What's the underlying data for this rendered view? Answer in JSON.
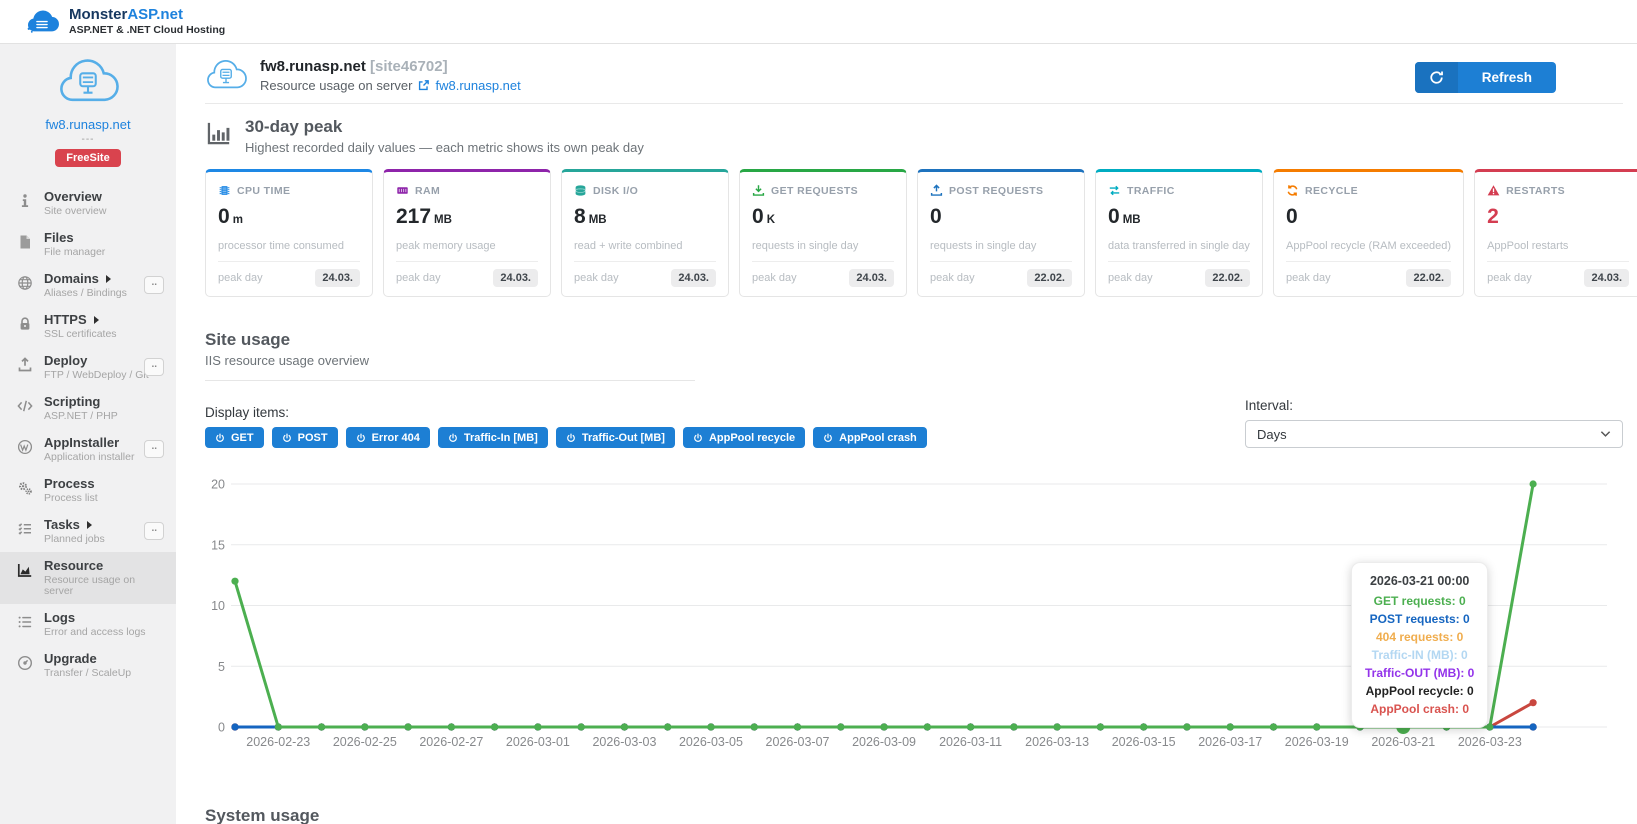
{
  "ui": {
    "more_label": ".."
  },
  "app": {
    "brand_monster": "Monster",
    "brand_asp": "ASP",
    "brand_net": ".net",
    "brand_subtitle": "ASP.NET & .NET Cloud Hosting"
  },
  "sidebar": {
    "site_name": "fw8.runasp.net",
    "site_dash": "---",
    "badge": "FreeSite",
    "items": [
      {
        "label": "Overview",
        "sub": "Site overview",
        "icon": "info-icon",
        "arrow": false,
        "more": false,
        "active": false
      },
      {
        "label": "Files",
        "sub": "File manager",
        "icon": "file-icon",
        "arrow": false,
        "more": false,
        "active": false
      },
      {
        "label": "Domains",
        "sub": "Aliases / Bindings",
        "icon": "globe-icon",
        "arrow": true,
        "more": true,
        "active": false
      },
      {
        "label": "HTTPS",
        "sub": "SSL certificates",
        "icon": "lock-icon",
        "arrow": true,
        "more": false,
        "active": false
      },
      {
        "label": "Deploy",
        "sub": "FTP / WebDeploy / Git",
        "icon": "upload-tray-icon",
        "arrow": false,
        "more": true,
        "active": false
      },
      {
        "label": "Scripting",
        "sub": "ASP.NET / PHP",
        "icon": "code-icon",
        "arrow": false,
        "more": false,
        "active": false
      },
      {
        "label": "AppInstaller",
        "sub": "Application installer",
        "icon": "wordpress-icon",
        "arrow": false,
        "more": true,
        "active": false
      },
      {
        "label": "Process",
        "sub": "Process list",
        "icon": "gears-icon",
        "arrow": false,
        "more": false,
        "active": false
      },
      {
        "label": "Tasks",
        "sub": "Planned jobs",
        "icon": "tasks-icon",
        "arrow": true,
        "more": true,
        "active": false
      },
      {
        "label": "Resource",
        "sub": "Resource usage on server",
        "icon": "chart-area-icon",
        "arrow": false,
        "more": false,
        "active": true
      },
      {
        "label": "Logs",
        "sub": "Error and access logs",
        "icon": "logs-icon",
        "arrow": false,
        "more": false,
        "active": false
      },
      {
        "label": "Upgrade",
        "sub": "Transfer / ScaleUp",
        "icon": "upgrade-icon",
        "arrow": false,
        "more": false,
        "active": false
      }
    ]
  },
  "header": {
    "site_title": "fw8.runasp.net",
    "site_id": "[site46702]",
    "subtitle": "Resource usage on server",
    "site_link": "fw8.runasp.net",
    "refresh_label": "Refresh"
  },
  "peak_section": {
    "title": "30-day peak",
    "subtitle": "Highest recorded daily values — each metric shows its own peak day",
    "peak_day_label": "peak day",
    "cards": [
      {
        "label": "CPU TIME",
        "icon": "cpu-icon",
        "accent": "#1e88e5",
        "value": "0",
        "unit": "m",
        "desc": "processor time consumed",
        "peak": "24.03."
      },
      {
        "label": "RAM",
        "icon": "ram-icon",
        "accent": "#8e24aa",
        "value": "217",
        "unit": "MB",
        "desc": "peak memory usage",
        "peak": "24.03."
      },
      {
        "label": "DISK I/O",
        "icon": "disk-icon",
        "accent": "#26a69a",
        "value": "8",
        "unit": "MB",
        "desc": "read + write combined",
        "peak": "24.03."
      },
      {
        "label": "GET REQUESTS",
        "icon": "download-icon",
        "accent": "#28a745",
        "value": "0",
        "unit": "K",
        "desc": "requests in single day",
        "peak": "24.03."
      },
      {
        "label": "POST REQUESTS",
        "icon": "upload-icon",
        "accent": "#1e73be",
        "value": "0",
        "unit": "",
        "desc": "requests in single day",
        "peak": "22.02."
      },
      {
        "label": "TRAFFIC",
        "icon": "transfer-icon",
        "accent": "#00acc1",
        "value": "0",
        "unit": "MB",
        "desc": "data transferred in single day",
        "peak": "22.02."
      },
      {
        "label": "RECYCLE",
        "icon": "recycle-icon",
        "accent": "#f57c00",
        "value": "0",
        "unit": "",
        "desc": "AppPool recycle (RAM exceeded)",
        "peak": "22.02."
      },
      {
        "label": "RESTARTS",
        "icon": "warning-icon",
        "accent": "#d43d51",
        "value": "2",
        "unit": "",
        "desc": "AppPool restarts",
        "peak": "24.03.",
        "value_color": "#d43d51"
      }
    ]
  },
  "site_usage": {
    "title": "Site usage",
    "subtitle": "IIS resource usage overview",
    "display_items_label": "Display items:",
    "toggles": [
      "GET",
      "POST",
      "Error 404",
      "Traffic-In [MB]",
      "Traffic-Out [MB]",
      "AppPool recycle",
      "AppPool crash"
    ],
    "interval_label": "Interval:",
    "interval_value": "Days"
  },
  "tooltip": {
    "title": "2026-03-21 00:00",
    "rows": [
      {
        "text": "GET requests: 0",
        "color": "#4caf50"
      },
      {
        "text": "POST requests: 0",
        "color": "#1565c0"
      },
      {
        "text": "404 requests: 0",
        "color": "#f0ad4e"
      },
      {
        "text": "Traffic-IN (MB): 0",
        "color": "#b3d7f2"
      },
      {
        "text": "Traffic-OUT (MB): 0",
        "color": "#9333ea"
      },
      {
        "text": "AppPool recycle: 0",
        "color": "#222222"
      },
      {
        "text": "AppPool crash: 0",
        "color": "#d9534f"
      }
    ]
  },
  "chart_data": {
    "type": "line",
    "x": [
      "2026-02-22",
      "2026-02-23",
      "2026-02-24",
      "2026-02-25",
      "2026-02-26",
      "2026-02-27",
      "2026-02-28",
      "2026-03-01",
      "2026-03-02",
      "2026-03-03",
      "2026-03-04",
      "2026-03-05",
      "2026-03-06",
      "2026-03-07",
      "2026-03-08",
      "2026-03-09",
      "2026-03-10",
      "2026-03-11",
      "2026-03-12",
      "2026-03-13",
      "2026-03-14",
      "2026-03-15",
      "2026-03-16",
      "2026-03-17",
      "2026-03-18",
      "2026-03-19",
      "2026-03-20",
      "2026-03-21",
      "2026-03-22",
      "2026-03-23",
      "2026-03-24"
    ],
    "xticks": [
      "2026-02-23",
      "2026-02-25",
      "2026-02-27",
      "2026-03-01",
      "2026-03-03",
      "2026-03-05",
      "2026-03-07",
      "2026-03-09",
      "2026-03-11",
      "2026-03-13",
      "2026-03-15",
      "2026-03-17",
      "2026-03-19",
      "2026-03-21",
      "2026-03-23"
    ],
    "ylim": [
      0,
      20
    ],
    "yticks": [
      0,
      5,
      10,
      15,
      20
    ],
    "grid": true,
    "legend_position": "none",
    "series": [
      {
        "name": "404 requests",
        "color": "#f0ad4e",
        "values": [
          0,
          0,
          0,
          0,
          0,
          0,
          0,
          0,
          0,
          0,
          0,
          0,
          0,
          0,
          0,
          0,
          0,
          0,
          0,
          0,
          0,
          0,
          0,
          0,
          0,
          0,
          0,
          0,
          0,
          0,
          0
        ]
      },
      {
        "name": "Traffic-IN (MB)",
        "color": "#b3d7f2",
        "values": [
          0,
          0,
          0,
          0,
          0,
          0,
          0,
          0,
          0,
          0,
          0,
          0,
          0,
          0,
          0,
          0,
          0,
          0,
          0,
          0,
          0,
          0,
          0,
          0,
          0,
          0,
          0,
          0,
          0,
          0,
          0
        ]
      },
      {
        "name": "Traffic-OUT (MB)",
        "color": "#9333ea",
        "values": [
          0,
          0,
          0,
          0,
          0,
          0,
          0,
          0,
          0,
          0,
          0,
          0,
          0,
          0,
          0,
          0,
          0,
          0,
          0,
          0,
          0,
          0,
          0,
          0,
          0,
          0,
          0,
          0,
          0,
          0,
          0
        ]
      },
      {
        "name": "AppPool recycle",
        "color": "#222222",
        "values": [
          0,
          0,
          0,
          0,
          0,
          0,
          0,
          0,
          0,
          0,
          0,
          0,
          0,
          0,
          0,
          0,
          0,
          0,
          0,
          0,
          0,
          0,
          0,
          0,
          0,
          0,
          0,
          0,
          0,
          0,
          0
        ]
      },
      {
        "name": "AppPool crash",
        "color": "#c9473f",
        "values": [
          0,
          0,
          0,
          0,
          0,
          0,
          0,
          0,
          0,
          0,
          0,
          0,
          0,
          0,
          0,
          0,
          0,
          0,
          0,
          0,
          0,
          0,
          0,
          0,
          0,
          0,
          0,
          0,
          0,
          0,
          2
        ]
      },
      {
        "name": "POST requests",
        "color": "#1565c0",
        "values": [
          0,
          0,
          0,
          0,
          0,
          0,
          0,
          0,
          0,
          0,
          0,
          0,
          0,
          0,
          0,
          0,
          0,
          0,
          0,
          0,
          0,
          0,
          0,
          0,
          0,
          0,
          0,
          0,
          0,
          0,
          0
        ]
      },
      {
        "name": "GET requests",
        "color": "#4caf50",
        "values": [
          12,
          0,
          0,
          0,
          0,
          0,
          0,
          0,
          0,
          0,
          0,
          0,
          0,
          0,
          0,
          0,
          0,
          0,
          0,
          0,
          0,
          0,
          0,
          0,
          0,
          0,
          0,
          0,
          0,
          0,
          20
        ]
      }
    ],
    "highlight": {
      "series": "GET requests",
      "x": "2026-03-21"
    }
  },
  "system_usage": {
    "title": "System usage"
  }
}
